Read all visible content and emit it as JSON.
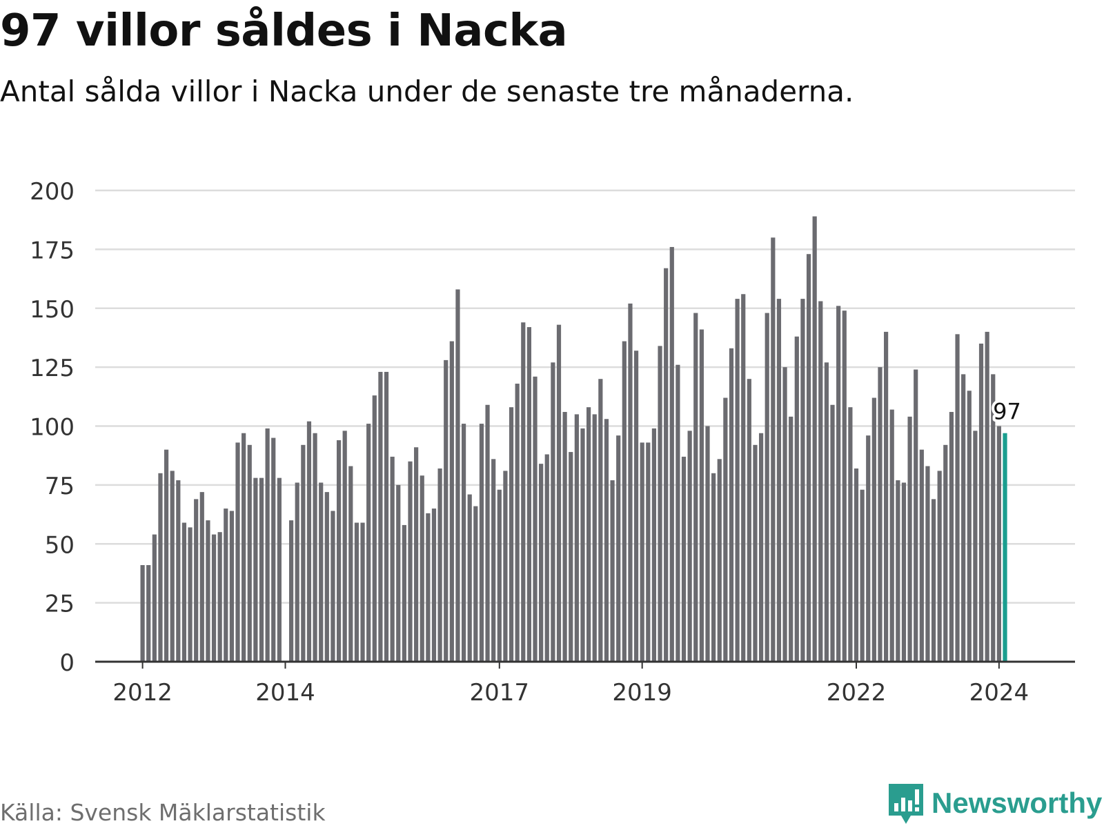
{
  "header": {
    "title": "97 villor såldes i Nacka",
    "subtitle": "Antal sålda villor i Nacka under de senaste tre månaderna."
  },
  "footer": {
    "source": "Källa: Svensk Mäklarstatistik",
    "brand": "Newsworthy"
  },
  "colors": {
    "bar": "#6b6b70",
    "highlight": "#1a9e8f",
    "grid": "#dcdcdc",
    "axis": "#333333",
    "brand": "#2a9d8f"
  },
  "chart_data": {
    "type": "bar",
    "title": "97 villor såldes i Nacka",
    "subtitle": "Antal sålda villor i Nacka under de senaste tre månaderna.",
    "xlabel": "",
    "ylabel": "",
    "ylim": [
      0,
      200
    ],
    "yticks": [
      0,
      25,
      50,
      75,
      100,
      125,
      150,
      175,
      200
    ],
    "xticks": [
      {
        "label": "2012",
        "index": 0
      },
      {
        "label": "2014",
        "index": 24
      },
      {
        "label": "2017",
        "index": 60
      },
      {
        "label": "2019",
        "index": 84
      },
      {
        "label": "2022",
        "index": 120
      },
      {
        "label": "2024",
        "index": 144
      }
    ],
    "grid": true,
    "highlight_index": 145,
    "highlight_label": "97",
    "values": [
      41,
      41,
      54,
      80,
      90,
      81,
      77,
      59,
      57,
      69,
      72,
      60,
      54,
      55,
      65,
      64,
      93,
      97,
      92,
      78,
      78,
      99,
      95,
      78,
      0,
      60,
      76,
      92,
      102,
      97,
      76,
      72,
      64,
      94,
      98,
      83,
      59,
      59,
      101,
      113,
      123,
      123,
      87,
      75,
      58,
      85,
      91,
      79,
      63,
      65,
      82,
      128,
      136,
      158,
      101,
      71,
      66,
      101,
      109,
      86,
      73,
      81,
      108,
      118,
      144,
      142,
      121,
      84,
      88,
      127,
      143,
      106,
      89,
      105,
      99,
      108,
      105,
      120,
      103,
      77,
      96,
      136,
      152,
      132,
      93,
      93,
      99,
      134,
      167,
      176,
      126,
      87,
      98,
      148,
      141,
      100,
      80,
      86,
      112,
      133,
      154,
      156,
      120,
      92,
      97,
      148,
      180,
      154,
      125,
      104,
      138,
      154,
      173,
      189,
      153,
      127,
      109,
      151,
      149,
      108,
      82,
      73,
      96,
      112,
      125,
      140,
      107,
      77,
      76,
      104,
      124,
      90,
      83,
      69,
      81,
      92,
      106,
      139,
      122,
      115,
      98,
      135,
      140,
      122,
      100,
      97
    ]
  }
}
